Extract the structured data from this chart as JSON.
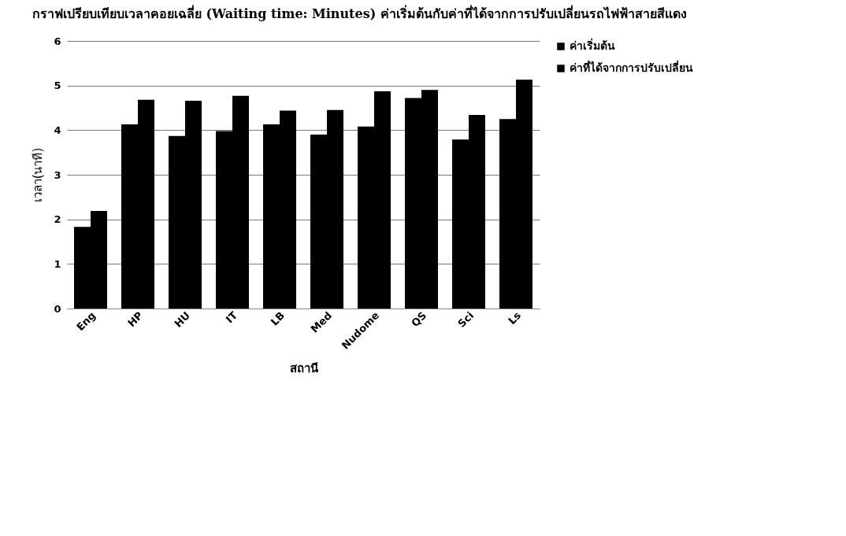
{
  "chart_data": {
    "type": "bar",
    "title": "กราฟเปรียบเทียบเวลาคอยเฉลี่ย (Waiting time: Minutes) ค่าเริ่มต้นกับค่าที่ได้จากการปรับเปลี่ยนรถไฟฟ้าสายสีแดง",
    "xlabel": "สถานี",
    "ylabel": "เวลา(นาที)",
    "categories": [
      "Eng",
      "HP",
      "HU",
      "IT",
      "LB",
      "Med",
      "Nudome",
      "QS",
      "Sci",
      "Ls"
    ],
    "series": [
      {
        "name": "ค่าเริ่มต้น",
        "color": "#000000",
        "values": [
          1.83,
          4.13,
          3.87,
          3.98,
          4.13,
          3.9,
          4.08,
          4.72,
          3.79,
          4.25
        ]
      },
      {
        "name": "ค่าที่ได้จากการปรับเปลี่ยน",
        "color": "#000000",
        "values": [
          2.19,
          4.68,
          4.66,
          4.77,
          4.44,
          4.45,
          4.87,
          4.9,
          4.34,
          5.13
        ]
      }
    ],
    "ylim": [
      0,
      6
    ],
    "yticks": [
      0,
      1,
      2,
      3,
      4,
      5,
      6
    ],
    "grid": "y",
    "legend": "right"
  }
}
